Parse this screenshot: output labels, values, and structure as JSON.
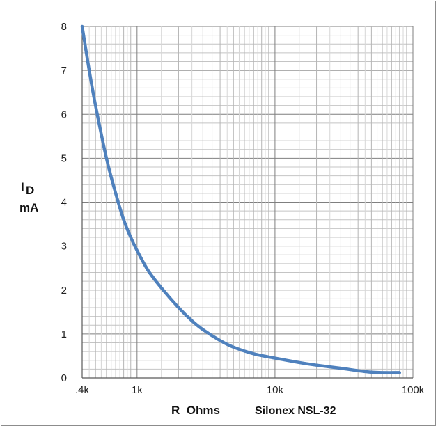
{
  "chart_data": {
    "type": "line",
    "title": "",
    "xlabel": "R  Ohms",
    "subtitle": "Silonex NSL-32",
    "ylabel_main": "I",
    "ylabel_sub": "D",
    "ylabel_unit": "mA",
    "x_scale": "log",
    "xlim": [
      400,
      100000
    ],
    "ylim": [
      0,
      8
    ],
    "grid": true,
    "x_tick_labels": [
      ".4k",
      "1k",
      "10k",
      "100k"
    ],
    "x_tick_values": [
      400,
      1000,
      10000,
      100000
    ],
    "y_tick_labels": [
      "0",
      "1",
      "2",
      "3",
      "4",
      "5",
      "6",
      "7",
      "8"
    ],
    "line_color": "#4f81bd",
    "series": [
      {
        "x": [
          400,
          450,
          500,
          600,
          700,
          800,
          900,
          1000,
          1200,
          1500,
          2000,
          2500,
          3000,
          4000,
          5000,
          7000,
          10000,
          15000,
          20000,
          30000,
          50000,
          80000
        ],
        "y": [
          8.0,
          7.0,
          6.2,
          5.0,
          4.2,
          3.6,
          3.2,
          2.9,
          2.45,
          2.05,
          1.6,
          1.3,
          1.1,
          0.85,
          0.7,
          0.55,
          0.45,
          0.35,
          0.29,
          0.22,
          0.13,
          0.12
        ]
      }
    ]
  }
}
